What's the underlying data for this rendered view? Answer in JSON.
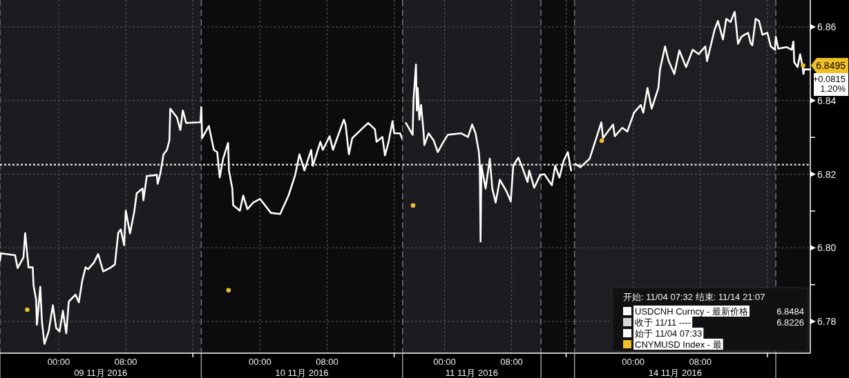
{
  "chart_data": [
    {
      "type": "line",
      "grid": true,
      "tick_labels": "x",
      "xlim": [
        "2016-11-08T17:00",
        "2016-11-10T17:00"
      ],
      "ylim": [
        6.7714,
        6.8673
      ],
      "xticks": [
        {
          "value": "2016-11-09T00:00",
          "label": "00:00"
        },
        {
          "value": "2016-11-09T08:00",
          "label": "08:00"
        },
        {
          "value": "2016-11-09T16:00",
          "label": null
        },
        {
          "value": "2016-11-10T00:00",
          "label": "00:00"
        },
        {
          "value": "2016-11-10T08:00",
          "label": "08:00"
        },
        {
          "value": "2016-11-10T16:00",
          "label": null
        }
      ],
      "yticks": [
        6.78,
        6.8,
        6.82,
        6.84,
        6.86
      ],
      "bands": [
        {
          "axis": "x",
          "from": "2016-11-08T17:00",
          "to": "2016-11-09T17:00",
          "label": "09 11月 2016",
          "color": "#1c1c20"
        },
        {
          "axis": "x",
          "from": "2016-11-09T17:00",
          "to": "2016-11-10T17:00",
          "label": "10 11月 2016",
          "color": "#0c0c0f"
        }
      ],
      "ref_lines": [
        {
          "axis": "y",
          "value": 6.8226,
          "color": "#d8d8d8",
          "line_style": "dotted"
        },
        {
          "axis": "x",
          "value": "2016-11-09T17:00",
          "color": "#747478",
          "line_style": "dashed"
        }
      ],
      "series": [
        {
          "color": "#ffffff",
          "x": [
            "2016-11-08T17:00",
            "2016-11-08T17:06",
            "2016-11-08T18:48",
            "2016-11-08T19:06",
            "2016-11-08T19:48",
            "2016-11-08T20:00",
            "2016-11-08T20:24",
            "2016-11-08T20:54",
            "2016-11-08T21:00",
            "2016-11-08T21:18",
            "2016-11-08T21:24",
            "2016-11-08T21:48",
            "2016-11-08T22:00",
            "2016-11-08T22:18",
            "2016-11-08T22:48",
            "2016-11-08T23:18",
            "2016-11-08T23:42",
            "2016-11-09T00:06",
            "2016-11-09T00:30",
            "2016-11-09T00:54",
            "2016-11-09T01:12",
            "2016-11-09T02:00",
            "2016-11-09T02:24",
            "2016-11-09T02:48",
            "2016-11-09T03:12",
            "2016-11-09T03:30",
            "2016-11-09T04:12",
            "2016-11-09T04:42",
            "2016-11-09T05:18",
            "2016-11-09T06:06",
            "2016-11-09T06:42",
            "2016-11-09T07:06",
            "2016-11-09T07:24",
            "2016-11-09T07:48",
            "2016-11-09T08:00",
            "2016-11-09T08:30",
            "2016-11-09T09:00",
            "2016-11-09T09:18",
            "2016-11-09T10:00",
            "2016-11-09T10:06",
            "2016-11-09T10:30",
            "2016-11-09T11:42",
            "2016-11-09T11:48",
            "2016-11-09T12:06",
            "2016-11-09T12:30",
            "2016-11-09T12:54",
            "2016-11-09T13:12",
            "2016-11-09T13:18",
            "2016-11-09T14:06",
            "2016-11-09T14:30",
            "2016-11-09T14:48",
            "2016-11-09T15:12",
            "2016-11-09T16:54",
            "2016-11-09T17:00",
            "2016-11-09T17:06",
            "2016-11-09T17:54",
            "2016-11-09T18:30",
            "2016-11-09T18:54",
            "2016-11-09T19:12",
            "2016-11-09T19:36",
            "2016-11-09T20:12",
            "2016-11-09T20:18",
            "2016-11-09T20:42",
            "2016-11-09T20:48",
            "2016-11-09T21:36",
            "2016-11-09T22:00",
            "2016-11-09T22:30",
            "2016-11-09T23:12",
            "2016-11-10T00:00",
            "2016-11-10T01:18",
            "2016-11-10T02:24",
            "2016-11-10T03:24",
            "2016-11-10T04:12",
            "2016-11-10T04:42",
            "2016-11-10T05:18",
            "2016-11-10T06:06",
            "2016-11-10T06:18",
            "2016-11-10T07:12",
            "2016-11-10T07:30",
            "2016-11-10T08:18",
            "2016-11-10T08:42",
            "2016-11-10T09:12",
            "2016-11-10T10:00",
            "2016-11-10T10:12",
            "2016-11-10T10:36",
            "2016-11-10T11:00",
            "2016-11-10T12:06",
            "2016-11-10T12:54",
            "2016-11-10T13:42",
            "2016-11-10T13:54",
            "2016-11-10T14:36",
            "2016-11-10T14:54",
            "2016-11-10T15:18",
            "2016-11-10T15:48",
            "2016-11-10T16:00",
            "2016-11-10T16:42",
            "2016-11-10T17:00"
          ],
          "values": [
            6.7965,
            6.7985,
            6.798,
            6.7945,
            6.7974,
            6.804,
            6.7947,
            6.7947,
            6.7898,
            6.786,
            6.7791,
            6.7894,
            6.78,
            6.7739,
            6.7773,
            6.7844,
            6.7782,
            6.7773,
            6.7829,
            6.7768,
            6.7854,
            6.7873,
            6.7852,
            6.791,
            6.7947,
            6.7942,
            6.796,
            6.7983,
            6.7936,
            6.7945,
            6.7955,
            6.8041,
            6.805,
            6.8007,
            6.8101,
            6.8039,
            6.8097,
            6.8148,
            6.8161,
            6.8129,
            6.8195,
            6.8198,
            6.8174,
            6.82,
            6.8254,
            6.8266,
            6.8292,
            6.8378,
            6.8354,
            6.832,
            6.8373,
            6.8339,
            6.8341,
            6.8382,
            6.8298,
            6.8331,
            6.8266,
            6.826,
            6.8191,
            6.8242,
            6.8285,
            6.821,
            6.8161,
            6.8116,
            6.8101,
            6.8142,
            6.8105,
            6.8123,
            6.8133,
            6.8095,
            6.8092,
            6.8142,
            6.8198,
            6.8254,
            6.821,
            6.8266,
            6.8223,
            6.8288,
            6.8266,
            6.8303,
            6.8266,
            6.8298,
            6.8348,
            6.8335,
            6.8254,
            6.8298,
            6.8322,
            6.8339,
            6.8322,
            6.8288,
            6.8301,
            6.8251,
            6.8285,
            6.8344,
            6.8311,
            6.8311,
            6.8294
          ]
        },
        {
          "type": "scatter",
          "color": "#f0c020",
          "marker": "circle",
          "x": [
            "2016-11-08T20:15",
            "2016-11-09T20:15"
          ],
          "values": [
            6.7832,
            6.7885
          ]
        }
      ]
    },
    {
      "type": "line",
      "grid": true,
      "tick_labels": "x",
      "xlim": [
        "2016-11-10T19:00",
        "2016-11-11T15:30"
      ],
      "ylim": [
        6.7714,
        6.8673
      ],
      "xticks": [
        {
          "value": "2016-11-11T00:00",
          "label": "00:00"
        },
        {
          "value": "2016-11-11T08:00",
          "label": "08:00"
        },
        {
          "value": "2016-11-11T14:30",
          "label": null
        }
      ],
      "yticks": [
        6.78,
        6.8,
        6.82,
        6.84,
        6.86
      ],
      "bands": [
        {
          "axis": "x",
          "from": "2016-11-10T19:00",
          "to": "2016-11-11T11:30",
          "label": "11 11月 2016",
          "color": "#1c1c20"
        },
        {
          "axis": "x",
          "from": "2016-11-11T11:30",
          "to": "2016-11-11T15:30",
          "color": "#0c0c0f"
        }
      ],
      "ref_lines": [
        {
          "axis": "y",
          "value": 6.8226,
          "color": "#d8d8d8",
          "line_style": "dotted"
        },
        {
          "axis": "x",
          "value": "2016-11-11T11:30",
          "color": "#747478",
          "line_style": "dashed"
        }
      ],
      "series": [
        {
          "color": "#ffffff",
          "x": [
            "2016-11-10T19:24",
            "2016-11-10T20:12",
            "2016-11-10T20:18",
            "2016-11-10T20:36",
            "2016-11-10T20:42",
            "2016-11-10T20:48",
            "2016-11-10T21:00",
            "2016-11-10T21:12",
            "2016-11-10T21:30",
            "2016-11-10T21:36",
            "2016-11-10T22:06",
            "2016-11-10T22:42",
            "2016-11-10T23:12",
            "2016-11-10T23:48",
            "2016-11-11T00:24",
            "2016-11-11T02:00",
            "2016-11-11T02:48",
            "2016-11-11T03:18",
            "2016-11-11T03:42",
            "2016-11-11T04:06",
            "2016-11-11T04:12",
            "2016-11-11T04:18",
            "2016-11-11T04:24",
            "2016-11-11T04:54",
            "2016-11-11T05:24",
            "2016-11-11T05:42",
            "2016-11-11T06:06",
            "2016-11-11T06:36",
            "2016-11-11T07:24",
            "2016-11-11T07:54",
            "2016-11-11T08:12",
            "2016-11-11T08:48",
            "2016-11-11T09:18",
            "2016-11-11T09:54",
            "2016-11-11T10:06",
            "2016-11-11T10:42",
            "2016-11-11T11:24",
            "2016-11-11T11:54",
            "2016-11-11T12:48",
            "2016-11-11T13:12",
            "2016-11-11T13:42",
            "2016-11-11T14:12",
            "2016-11-11T14:42",
            "2016-11-11T15:06"
          ],
          "values": [
            6.8339,
            6.8307,
            6.84,
            6.8498,
            6.8373,
            6.8434,
            6.8348,
            6.8388,
            6.8316,
            6.8279,
            6.8311,
            6.8292,
            6.826,
            6.8285,
            6.8307,
            6.8311,
            6.8301,
            6.8335,
            6.8311,
            6.826,
            6.8228,
            6.8017,
            6.8223,
            6.8161,
            6.8242,
            6.8161,
            6.8123,
            6.8185,
            6.8153,
            6.8126,
            6.8223,
            6.8245,
            6.8217,
            6.8179,
            6.821,
            6.8163,
            6.8198,
            6.82,
            6.817,
            6.8223,
            6.8191,
            6.8236,
            6.826,
            6.821
          ]
        },
        {
          "type": "scatter",
          "color": "#f0c020",
          "marker": "circle",
          "x": [
            "2016-11-10T20:15"
          ],
          "values": [
            6.8115
          ]
        }
      ]
    },
    {
      "type": "line",
      "grid": true,
      "legend": "bottom right",
      "legend_title": "开始: 11/04 07:32 结束: 11/14 21:07",
      "xlim": [
        "2016-11-13T17:00",
        "2016-11-14T21:07"
      ],
      "ylim": [
        6.7714,
        6.8673
      ],
      "xticks": [
        {
          "value": "2016-11-14T00:00",
          "label": "00:00"
        },
        {
          "value": "2016-11-14T08:00",
          "label": "08:00"
        },
        {
          "value": "2016-11-14T16:00",
          "label": null
        }
      ],
      "yticks": [
        6.78,
        {
          "value": 6.79,
          "label": null
        },
        {
          "value": 6.8,
          "label": "6.80"
        },
        {
          "value": 6.81,
          "label": null
        },
        6.82,
        {
          "value": 6.83,
          "label": null
        },
        6.84,
        6.86
      ],
      "bands": [
        {
          "axis": "x",
          "from": "2016-11-13T17:00",
          "to": "2016-11-14T17:00",
          "label": "14 11月 2016",
          "color": "#1e1e22"
        },
        {
          "axis": "x",
          "from": "2016-11-14T17:00",
          "to": "2016-11-14T21:07",
          "color": "#0c0c0f"
        }
      ],
      "ref_lines": [
        {
          "axis": "y",
          "value": 6.8226,
          "label": "收于 11/11 ----",
          "color": "#d8d8d8",
          "line_style": "dotted"
        },
        {
          "axis": "x",
          "value": "2016-11-14T17:00",
          "color": "#747478",
          "line_style": "dashed"
        }
      ],
      "annotations": [
        "6.8484",
        "6.8226",
        "始于 11/04 07:33",
        "+0.0815",
        "1.20%"
      ],
      "series": [
        {
          "name": "USDCNH Curncy - 最新价格",
          "color": "#ffffff",
          "x": [
            "2016-11-13T17:06",
            "2016-11-13T17:42",
            "2016-11-13T18:48",
            "2016-11-13T19:36",
            "2016-11-13T20:12",
            "2016-11-13T20:24",
            "2016-11-13T21:36",
            "2016-11-13T21:48",
            "2016-11-13T22:42",
            "2016-11-13T23:18",
            "2016-11-14T00:06",
            "2016-11-14T00:54",
            "2016-11-14T01:12",
            "2016-11-14T01:42",
            "2016-11-14T02:12",
            "2016-11-14T03:00",
            "2016-11-14T03:12",
            "2016-11-14T03:48",
            "2016-11-14T04:12",
            "2016-11-14T04:54",
            "2016-11-14T05:30",
            "2016-11-14T06:18",
            "2016-11-14T07:06",
            "2016-11-14T07:48",
            "2016-11-14T08:36",
            "2016-11-14T08:48",
            "2016-11-14T09:18",
            "2016-11-14T09:42",
            "2016-11-14T10:06",
            "2016-11-14T10:30",
            "2016-11-14T10:42",
            "2016-11-14T11:06",
            "2016-11-14T11:36",
            "2016-11-14T12:06",
            "2016-11-14T12:30",
            "2016-11-14T12:54",
            "2016-11-14T13:18",
            "2016-11-14T13:42",
            "2016-11-14T14:00",
            "2016-11-14T14:12",
            "2016-11-14T14:36",
            "2016-11-14T15:00",
            "2016-11-14T15:24",
            "2016-11-14T16:00",
            "2016-11-14T16:24",
            "2016-11-14T16:54",
            "2016-11-14T17:00",
            "2016-11-14T17:18",
            "2016-11-14T18:18",
            "2016-11-14T18:54",
            "2016-11-14T19:06",
            "2016-11-14T19:12",
            "2016-11-14T19:36",
            "2016-11-14T19:54",
            "2016-11-14T20:12",
            "2016-11-14T20:18",
            "2016-11-14T20:24",
            "2016-11-14T21:07"
          ],
          "values": [
            6.8228,
            6.8219,
            6.8242,
            6.8298,
            6.8341,
            6.8298,
            6.8335,
            6.8303,
            6.8326,
            6.8316,
            6.8367,
            6.8388,
            6.8367,
            6.8434,
            6.8378,
            6.8434,
            6.8485,
            6.8547,
            6.8509,
            6.8472,
            6.8536,
            6.8491,
            6.8538,
            6.8526,
            6.8547,
            6.8507,
            6.8554,
            6.8592,
            6.8616,
            6.8583,
            6.8566,
            6.8622,
            6.8613,
            6.8641,
            6.8554,
            6.8573,
            6.8579,
            6.8584,
            6.8556,
            6.855,
            6.8622,
            6.8616,
            6.8579,
            6.8584,
            6.8547,
            6.8538,
            6.8573,
            6.8541,
            6.8545,
            6.8538,
            6.856,
            6.8504,
            6.8491,
            6.8526,
            6.8491,
            6.8472,
            6.8485,
            6.8484
          ]
        },
        {
          "name": "CNYMUSD Index - 最",
          "type": "scatter",
          "color": "#f0c020",
          "marker": "circle",
          "x": [
            "2016-11-13T20:15",
            "2016-11-14T20:15"
          ],
          "values": [
            6.8291,
            6.8495
          ],
          "value_labels": [
            null,
            "6.8495"
          ]
        }
      ]
    }
  ]
}
